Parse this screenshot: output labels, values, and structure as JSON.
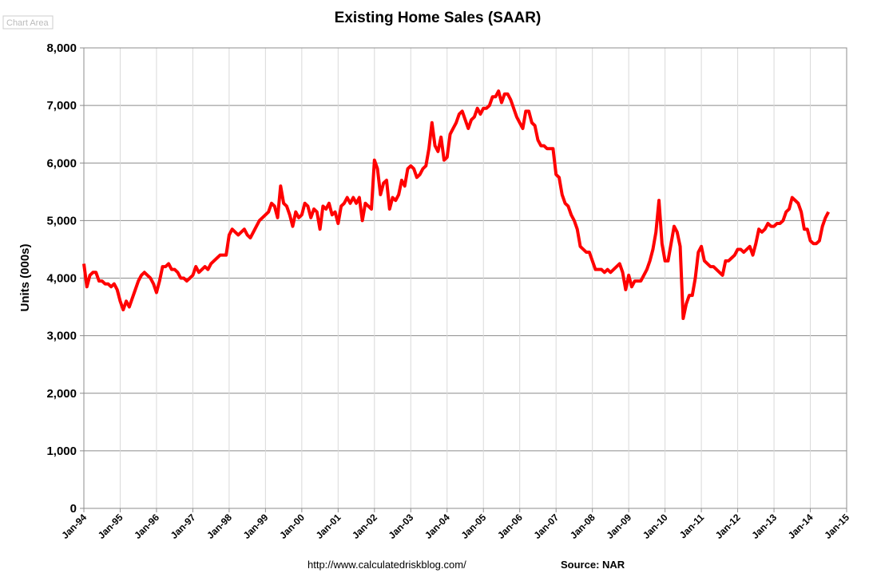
{
  "chart_data": {
    "type": "line",
    "title": "Existing Home Sales (SAAR)",
    "corner_label": "Chart Area",
    "ylabel": "Units (000s)",
    "footer_url": "http://www.calculatedriskblog.com/",
    "footer_source": "Source: NAR",
    "grid": true,
    "ylim": [
      0,
      8000
    ],
    "yticks": [
      0,
      {
        "value": 1000,
        "label": "1,000"
      },
      {
        "value": 2000,
        "label": "2,000"
      },
      {
        "value": 3000,
        "label": "3,000"
      },
      {
        "value": 4000,
        "label": "4,000"
      },
      {
        "value": 5000,
        "label": "5,000"
      },
      {
        "value": 6000,
        "label": "6,000"
      },
      {
        "value": 7000,
        "label": "7,000"
      },
      {
        "value": 8000,
        "label": "8,000"
      }
    ],
    "categories": [
      "Jan-94",
      null,
      null,
      null,
      null,
      null,
      null,
      null,
      null,
      null,
      null,
      null,
      "Jan-95",
      null,
      null,
      null,
      null,
      null,
      null,
      null,
      null,
      null,
      null,
      null,
      "Jan-96",
      null,
      null,
      null,
      null,
      null,
      null,
      null,
      null,
      null,
      null,
      null,
      "Jan-97",
      null,
      null,
      null,
      null,
      null,
      null,
      null,
      null,
      null,
      null,
      null,
      "Jan-98",
      null,
      null,
      null,
      null,
      null,
      null,
      null,
      null,
      null,
      null,
      null,
      "Jan-99",
      null,
      null,
      null,
      null,
      null,
      null,
      null,
      null,
      null,
      null,
      null,
      "Jan-00",
      null,
      null,
      null,
      null,
      null,
      null,
      null,
      null,
      null,
      null,
      null,
      "Jan-01",
      null,
      null,
      null,
      null,
      null,
      null,
      null,
      null,
      null,
      null,
      null,
      "Jan-02",
      null,
      null,
      null,
      null,
      null,
      null,
      null,
      null,
      null,
      null,
      null,
      "Jan-03",
      null,
      null,
      null,
      null,
      null,
      null,
      null,
      null,
      null,
      null,
      null,
      "Jan-04",
      null,
      null,
      null,
      null,
      null,
      null,
      null,
      null,
      null,
      null,
      null,
      "Jan-05",
      null,
      null,
      null,
      null,
      null,
      null,
      null,
      null,
      null,
      null,
      null,
      "Jan-06",
      null,
      null,
      null,
      null,
      null,
      null,
      null,
      null,
      null,
      null,
      null,
      "Jan-07",
      null,
      null,
      null,
      null,
      null,
      null,
      null,
      null,
      null,
      null,
      null,
      "Jan-08",
      null,
      null,
      null,
      null,
      null,
      null,
      null,
      null,
      null,
      null,
      null,
      "Jan-09",
      null,
      null,
      null,
      null,
      null,
      null,
      null,
      null,
      null,
      null,
      null,
      "Jan-10",
      null,
      null,
      null,
      null,
      null,
      null,
      null,
      null,
      null,
      null,
      null,
      "Jan-11",
      null,
      null,
      null,
      null,
      null,
      null,
      null,
      null,
      null,
      null,
      null,
      "Jan-12",
      null,
      null,
      null,
      null,
      null,
      null,
      null,
      null,
      null,
      null,
      null,
      "Jan-13",
      null,
      null,
      null,
      null,
      null,
      null,
      null,
      null,
      null,
      null,
      null,
      "Jan-14",
      null,
      null,
      null,
      null,
      null,
      null,
      null,
      null,
      null,
      null,
      null,
      "Jan-15"
    ],
    "series": [
      {
        "color": "#ff0000",
        "values": [
          4250,
          3850,
          4050,
          4100,
          4100,
          3950,
          3950,
          3900,
          3900,
          3850,
          3900,
          3800,
          3600,
          3450,
          3600,
          3500,
          3650,
          3800,
          3950,
          4050,
          4100,
          4050,
          4000,
          3900,
          3750,
          3950,
          4200,
          4200,
          4250,
          4150,
          4150,
          4100,
          4000,
          4000,
          3950,
          4000,
          4050,
          4200,
          4100,
          4150,
          4200,
          4150,
          4250,
          4300,
          4350,
          4400,
          4400,
          4400,
          4750,
          4850,
          4800,
          4750,
          4800,
          4850,
          4750,
          4700,
          4800,
          4900,
          5000,
          5050,
          5100,
          5150,
          5300,
          5250,
          5050,
          5600,
          5300,
          5250,
          5100,
          4900,
          5150,
          5050,
          5100,
          5300,
          5250,
          5050,
          5200,
          5150,
          4850,
          5250,
          5200,
          5300,
          5100,
          5150,
          4950,
          5250,
          5300,
          5400,
          5300,
          5400,
          5300,
          5400,
          5000,
          5300,
          5250,
          5200,
          6050,
          5900,
          5450,
          5650,
          5700,
          5200,
          5400,
          5350,
          5450,
          5700,
          5600,
          5900,
          5950,
          5900,
          5750,
          5800,
          5900,
          5950,
          6250,
          6700,
          6300,
          6200,
          6450,
          6050,
          6100,
          6500,
          6600,
          6700,
          6850,
          6900,
          6750,
          6600,
          6750,
          6800,
          6950,
          6850,
          6950,
          6950,
          7000,
          7150,
          7150,
          7250,
          7050,
          7200,
          7200,
          7100,
          6950,
          6800,
          6700,
          6600,
          6900,
          6900,
          6700,
          6650,
          6400,
          6300,
          6300,
          6250,
          6250,
          6250,
          5800,
          5750,
          5450,
          5300,
          5250,
          5100,
          5000,
          4850,
          4550,
          4500,
          4450,
          4450,
          4300,
          4150,
          4150,
          4150,
          4100,
          4150,
          4100,
          4150,
          4200,
          4250,
          4100,
          3800,
          4050,
          3850,
          3950,
          3950,
          3950,
          4050,
          4150,
          4300,
          4500,
          4800,
          5350,
          4600,
          4300,
          4300,
          4600,
          4900,
          4800,
          4550,
          3300,
          3550,
          3700,
          3700,
          4000,
          4450,
          4550,
          4300,
          4250,
          4200,
          4200,
          4150,
          4100,
          4050,
          4300,
          4300,
          4350,
          4400,
          4500,
          4500,
          4450,
          4500,
          4550,
          4400,
          4600,
          4850,
          4800,
          4850,
          4950,
          4900,
          4900,
          4950,
          4950,
          5000,
          5150,
          5200,
          5400,
          5350,
          5300,
          5150,
          4850,
          4850,
          4650,
          4600,
          4600,
          4650,
          4900,
          5050,
          5150,
          null,
          null,
          null,
          null,
          null,
          null
        ]
      }
    ]
  }
}
